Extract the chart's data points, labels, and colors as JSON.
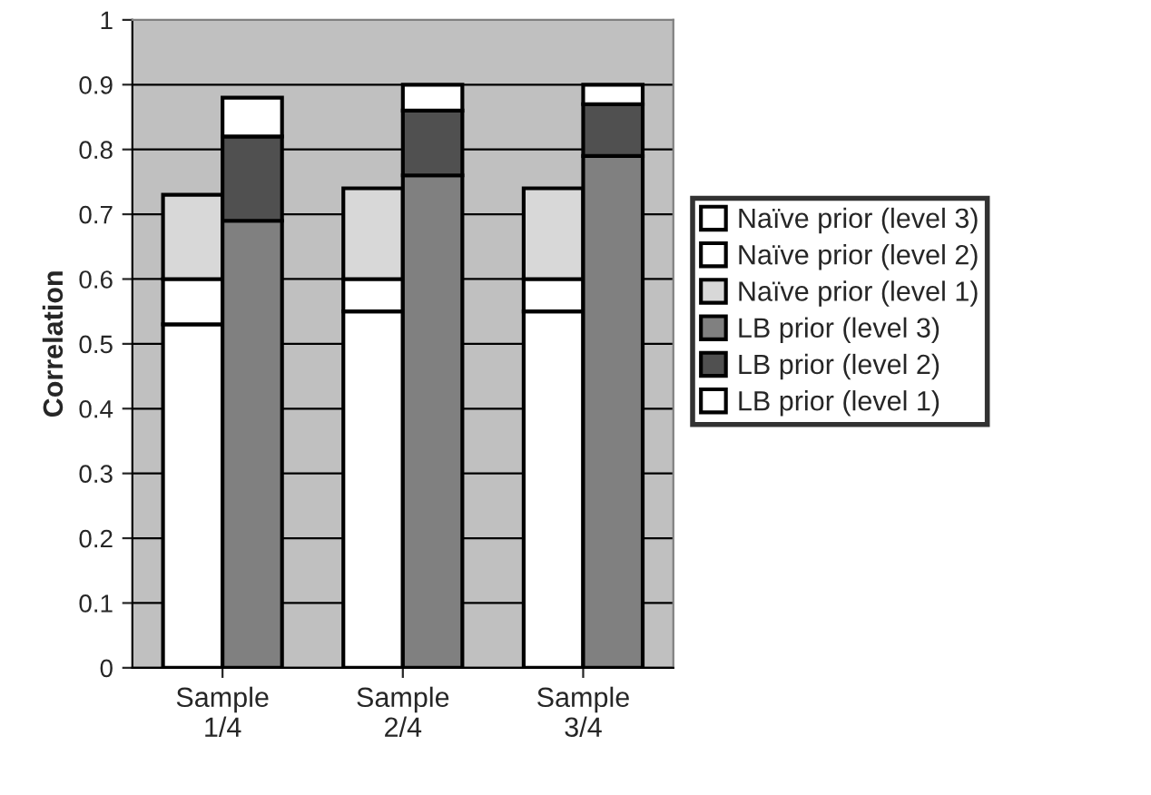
{
  "chart_data": {
    "type": "bar",
    "ylabel": "Correlation",
    "categories": [
      "Sample\n1/4",
      "Sample\n2/4",
      "Sample\n3/4"
    ],
    "series": [
      {
        "name": "Naïve prior (level 3)",
        "color": "#ffffff",
        "base": [
          0,
          0,
          0
        ],
        "values": [
          0.53,
          0.55,
          0.55
        ]
      },
      {
        "name": "Naïve prior (level 2)",
        "color": "#ffffff",
        "base": [
          0.53,
          0.55,
          0.55
        ],
        "values": [
          0.07,
          0.05,
          0.05
        ]
      },
      {
        "name": "Naïve prior (level 1)",
        "color": "#d8d8d8",
        "base": [
          0.6,
          0.6,
          0.6
        ],
        "values": [
          0.13,
          0.14,
          0.14
        ]
      },
      {
        "name": "LB prior (level 3)",
        "color": "#808080",
        "base": [
          0,
          0,
          0
        ],
        "values": [
          0.69,
          0.76,
          0.79
        ]
      },
      {
        "name": "LB prior (level 2)",
        "color": "#505050",
        "base": [
          0.69,
          0.76,
          0.79
        ],
        "values": [
          0.13,
          0.1,
          0.08
        ]
      },
      {
        "name": "LB prior (level 1)",
        "color": "#ffffff",
        "base": [
          0.82,
          0.86,
          0.87
        ],
        "values": [
          0.06,
          0.04,
          0.03
        ]
      }
    ],
    "ylim": [
      0,
      1
    ],
    "yticks": [
      0,
      0.1,
      0.2,
      0.3,
      0.4,
      0.5,
      0.6,
      0.7,
      0.8,
      0.9,
      1
    ],
    "grid": "y",
    "legend": "right"
  }
}
